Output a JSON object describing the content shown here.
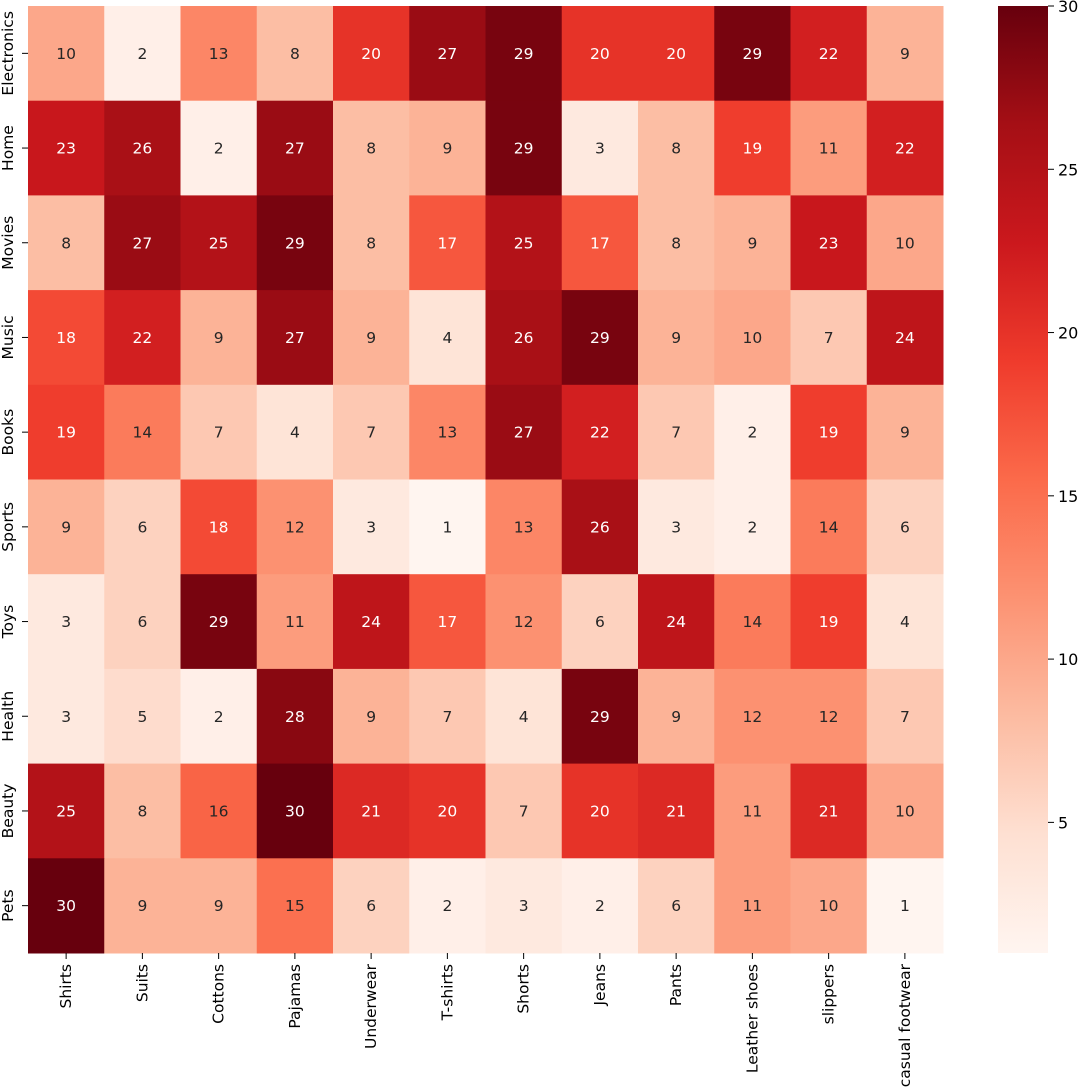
{
  "chart_data": {
    "type": "heatmap",
    "title": "",
    "xlabel": "",
    "ylabel": "",
    "x_categories": [
      "Shirts",
      "Suits",
      "Cottons",
      "Pajamas",
      "Underwear",
      "T-shirts",
      "Shorts",
      "Jeans",
      "Pants",
      "Leather shoes",
      "slippers",
      "casual footwear"
    ],
    "y_categories": [
      "Electronics",
      "Home",
      "Movies",
      "Music",
      "Books",
      "Sports",
      "Toys",
      "Health",
      "Beauty",
      "Pets"
    ],
    "values": [
      [
        10,
        2,
        13,
        8,
        20,
        27,
        29,
        20,
        20,
        29,
        22,
        9
      ],
      [
        23,
        26,
        2,
        27,
        8,
        9,
        29,
        3,
        8,
        19,
        11,
        22
      ],
      [
        8,
        27,
        25,
        29,
        8,
        17,
        25,
        17,
        8,
        9,
        23,
        10
      ],
      [
        18,
        22,
        9,
        27,
        9,
        4,
        26,
        29,
        9,
        10,
        7,
        24
      ],
      [
        19,
        14,
        7,
        4,
        7,
        13,
        27,
        22,
        7,
        2,
        19,
        9
      ],
      [
        9,
        6,
        18,
        12,
        3,
        1,
        13,
        26,
        3,
        2,
        14,
        6
      ],
      [
        3,
        6,
        29,
        11,
        24,
        17,
        12,
        6,
        24,
        14,
        19,
        4
      ],
      [
        3,
        5,
        2,
        28,
        9,
        7,
        4,
        29,
        9,
        12,
        12,
        7
      ],
      [
        25,
        8,
        16,
        30,
        21,
        20,
        7,
        20,
        21,
        11,
        21,
        10
      ],
      [
        30,
        9,
        9,
        15,
        6,
        2,
        3,
        2,
        6,
        11,
        10,
        1
      ]
    ],
    "colormap": "Reds",
    "vmin": 1,
    "vmax": 30,
    "colorbar_ticks": [
      "5",
      "10",
      "15",
      "20",
      "25",
      "30"
    ],
    "annotated": true
  }
}
